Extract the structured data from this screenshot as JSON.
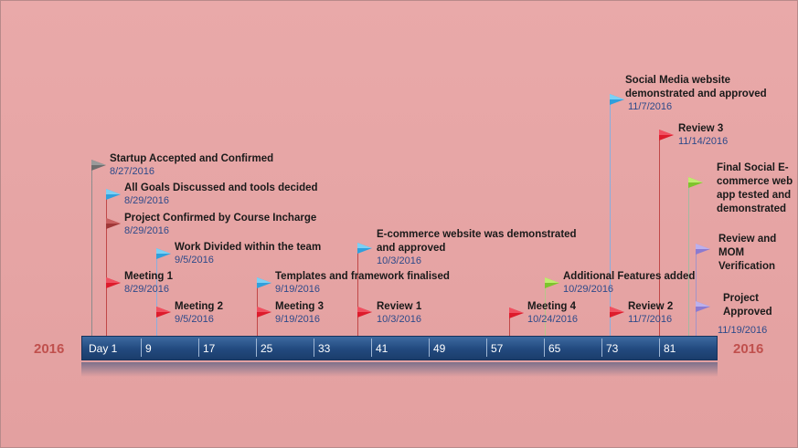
{
  "timeline": {
    "start_year": "2016",
    "end_year": "2016",
    "ticks": [
      "Day 1",
      "9",
      "17",
      "25",
      "33",
      "41",
      "49",
      "57",
      "65",
      "73",
      "81"
    ]
  },
  "events": [
    {
      "title": "Startup Accepted and Confirmed",
      "date": "8/27/2016",
      "flag_color": "#6e6e6e"
    },
    {
      "title": "All Goals Discussed  and tools decided",
      "date": "8/29/2016",
      "flag_color": "#2f9fdc"
    },
    {
      "title": "Project Confirmed by Course Incharge",
      "date": "8/29/2016",
      "flag_color": "#a03838"
    },
    {
      "title": "Work Divided within the team",
      "date": "9/5/2016",
      "flag_color": "#2f9fdc"
    },
    {
      "title": "Meeting 1",
      "date": "8/29/2016",
      "flag_color": "#dd1c2c"
    },
    {
      "title": "Meeting 2",
      "date": "9/5/2016",
      "flag_color": "#dd1c2c"
    },
    {
      "title": "Templates and framework finalised",
      "date": "9/19/2016",
      "flag_color": "#2f9fdc"
    },
    {
      "title": "Meeting 3",
      "date": "9/19/2016",
      "flag_color": "#dd1c2c"
    },
    {
      "title": "E-commerce website was demonstrated and approved",
      "date": "10/3/2016",
      "flag_color": "#2f9fdc"
    },
    {
      "title": "Review 1",
      "date": "10/3/2016",
      "flag_color": "#dd1c2c"
    },
    {
      "title": "Meeting 4",
      "date": "10/24/2016",
      "flag_color": "#dd1c2c"
    },
    {
      "title": "Additional Features added",
      "date": "10/29/2016",
      "flag_color": "#7ec42c"
    },
    {
      "title": "Social Media website demonstrated and approved",
      "date": "11/7/2016",
      "flag_color": "#2f9fdc"
    },
    {
      "title": "Review 3",
      "date": "11/14/2016",
      "flag_color": "#dd1c2c"
    },
    {
      "title": "Review 2",
      "date": "11/7/2016",
      "flag_color": "#dd1c2c"
    },
    {
      "title": "Final Social  E-commerce web app tested and demonstrated",
      "flag_color": "#7ec42c"
    },
    {
      "title": "Review and MOM Verification",
      "flag_color": "#8c7ad0"
    },
    {
      "title": "Project Approved",
      "date": "11/19/2016",
      "flag_color": "#8c7ad0"
    }
  ],
  "colors": {
    "background": "#e3a0a0",
    "bar": "#22497e",
    "year_text": "#c0504d",
    "date_text": "#2d4a8a"
  }
}
